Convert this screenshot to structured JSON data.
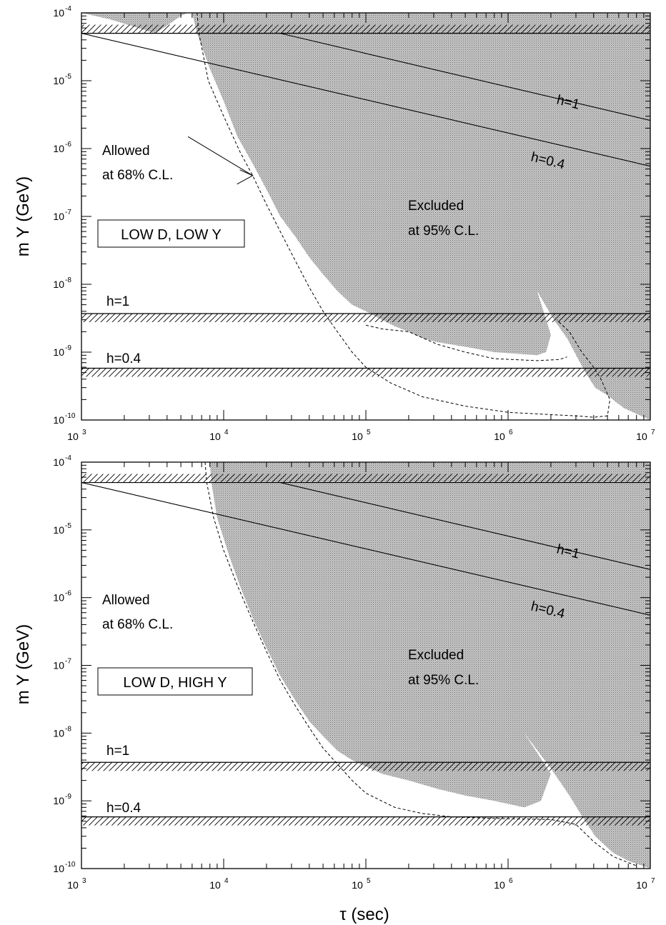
{
  "chart_data": [
    {
      "type": "area",
      "title": "",
      "xlabel": "",
      "ylabel": "m Y (GeV)",
      "xscale": "log",
      "yscale": "log",
      "xlim": [
        1000,
        10000000
      ],
      "ylim": [
        1e-10,
        0.0001
      ],
      "grid": false,
      "box_label": "LOW D, LOW Y",
      "x_ticks": [
        {
          "base": "10",
          "exp": "3"
        },
        {
          "base": "10",
          "exp": "4"
        },
        {
          "base": "10",
          "exp": "5"
        },
        {
          "base": "10",
          "exp": "6"
        },
        {
          "base": "10",
          "exp": "7"
        }
      ],
      "y_ticks": [
        {
          "base": "10",
          "exp": "-4"
        },
        {
          "base": "10",
          "exp": "-5"
        },
        {
          "base": "10",
          "exp": "-6"
        },
        {
          "base": "10",
          "exp": "-7"
        },
        {
          "base": "10",
          "exp": "-8"
        },
        {
          "base": "10",
          "exp": "-9"
        },
        {
          "base": "10",
          "exp": "-10"
        }
      ],
      "labels": {
        "allowed_1": "Allowed",
        "allowed_2": "at 68% C.L.",
        "excluded_1": "Excluded",
        "excluded_2": "at 95% C.L.",
        "h1_horizontal": "h=1",
        "h04_horizontal": "h=0.4",
        "h1_diagonal": "h=1",
        "h04_diagonal": "h=0.4"
      },
      "arrow": {
        "from": [
          5000,
          1.5e-06
        ],
        "to": [
          16000,
          4e-07
        ]
      },
      "excluded_region": [
        [
          6000,
          0.0001
        ],
        [
          6500,
          5e-05
        ],
        [
          8000,
          1.5e-05
        ],
        [
          10000,
          5e-06
        ],
        [
          12500,
          1.5e-06
        ],
        [
          16000,
          6e-07
        ],
        [
          20000,
          2.5e-07
        ],
        [
          25000,
          1e-07
        ],
        [
          32000,
          5e-08
        ],
        [
          40000,
          2.5e-08
        ],
        [
          50000,
          1.4e-08
        ],
        [
          63000,
          8e-09
        ],
        [
          80000,
          5e-09
        ],
        [
          100000,
          4e-09
        ],
        [
          130000,
          3e-09
        ],
        [
          160000,
          2.4e-09
        ],
        [
          200000,
          2e-09
        ],
        [
          250000,
          1.6e-09
        ],
        [
          320000,
          1.4e-09
        ],
        [
          500000,
          1.2e-09
        ],
        [
          800000,
          1e-09
        ],
        [
          1600000,
          9e-10
        ],
        [
          1850000,
          1e-09
        ],
        [
          2000000,
          1.8e-09
        ],
        [
          1600000,
          8e-09
        ],
        [
          2100000,
          3e-09
        ],
        [
          2600000,
          1.6e-09
        ],
        [
          3100000,
          8e-10
        ],
        [
          3500000,
          5e-10
        ],
        [
          4100000,
          3e-10
        ],
        [
          5000000,
          2.3e-10
        ],
        [
          6500000,
          1.5e-10
        ],
        [
          10000000,
          1e-10
        ],
        [
          10000000,
          0.0001
        ]
      ],
      "excluded_island": [
        [
          1000,
          0.0001
        ],
        [
          1600,
          8e-05
        ],
        [
          2500,
          6e-05
        ],
        [
          3300,
          5e-05
        ],
        [
          4000,
          6.5e-05
        ],
        [
          5000,
          9e-05
        ],
        [
          5600,
          0.0001
        ]
      ],
      "dashed_allowed_contour": [
        [
          6500,
          0.0001
        ],
        [
          6700,
          5e-05
        ],
        [
          7800,
          1e-05
        ],
        [
          10000,
          3e-06
        ],
        [
          13000,
          9e-07
        ],
        [
          16000,
          4e-07
        ],
        [
          20000,
          1.5e-07
        ],
        [
          25000,
          6e-08
        ],
        [
          32000,
          2.2e-08
        ],
        [
          40000,
          9e-09
        ],
        [
          50000,
          4e-09
        ],
        [
          63000,
          2e-09
        ],
        [
          80000,
          1e-09
        ],
        [
          100000,
          6e-10
        ],
        [
          150000,
          3.5e-10
        ],
        [
          250000,
          2.2e-10
        ],
        [
          500000,
          1.6e-10
        ],
        [
          1000000,
          1.3e-10
        ],
        [
          2000000,
          1.2e-10
        ],
        [
          3000000,
          1.15e-10
        ],
        [
          4000000,
          1.1e-10
        ],
        [
          5000000,
          1.15e-10
        ],
        [
          5200000,
          2e-10
        ],
        [
          4500000,
          4e-10
        ],
        [
          4000000,
          6e-10
        ],
        [
          3300000,
          1e-09
        ],
        [
          2700000,
          2e-09
        ],
        [
          2200000,
          3e-09
        ]
      ],
      "dashed_allowed_contour_inner": [
        [
          100000,
          2.5e-09
        ],
        [
          130000,
          2.2e-09
        ],
        [
          200000,
          2e-09
        ],
        [
          320000,
          1.3e-09
        ],
        [
          500000,
          1e-09
        ],
        [
          800000,
          8e-10
        ],
        [
          1600000,
          7.5e-10
        ],
        [
          2300000,
          7.8e-10
        ],
        [
          2600000,
          8.5e-10
        ]
      ],
      "h_lines": [
        {
          "value": 5e-05,
          "band_upper": true
        },
        {
          "value": 3.7e-09,
          "band_lower": true
        },
        {
          "value": 5.8e-10,
          "band_lower": true
        }
      ],
      "diagonal_lines": [
        {
          "x": [
            1000,
            10000000
          ],
          "y": [
            5e-05,
            5.5e-07
          ]
        },
        {
          "x": [
            25000,
            10000000
          ],
          "y": [
            5e-05,
            2.6e-06
          ]
        }
      ]
    },
    {
      "type": "area",
      "title": "",
      "xlabel": "τ (sec)",
      "ylabel": "m Y (GeV)",
      "xscale": "log",
      "yscale": "log",
      "xlim": [
        1000,
        10000000
      ],
      "ylim": [
        1e-10,
        0.0001
      ],
      "grid": false,
      "box_label": "LOW D, HIGH Y",
      "x_ticks": [
        {
          "base": "10",
          "exp": "3"
        },
        {
          "base": "10",
          "exp": "4"
        },
        {
          "base": "10",
          "exp": "5"
        },
        {
          "base": "10",
          "exp": "6"
        },
        {
          "base": "10",
          "exp": "7"
        }
      ],
      "y_ticks": [
        {
          "base": "10",
          "exp": "-4"
        },
        {
          "base": "10",
          "exp": "-5"
        },
        {
          "base": "10",
          "exp": "-6"
        },
        {
          "base": "10",
          "exp": "-7"
        },
        {
          "base": "10",
          "exp": "-8"
        },
        {
          "base": "10",
          "exp": "-9"
        },
        {
          "base": "10",
          "exp": "-10"
        }
      ],
      "labels": {
        "allowed_1": "Allowed",
        "allowed_2": "at 68% C.L.",
        "excluded_1": "Excluded",
        "excluded_2": "at 95% C.L.",
        "h1_horizontal": "h=1",
        "h04_horizontal": "h=0.4",
        "h1_diagonal": "h=1",
        "h04_diagonal": "h=0.4"
      },
      "excluded_region": [
        [
          8000,
          0.0001
        ],
        [
          8200,
          5e-05
        ],
        [
          9000,
          1.5e-05
        ],
        [
          11000,
          4e-06
        ],
        [
          13000,
          1.5e-06
        ],
        [
          16000,
          5e-07
        ],
        [
          20000,
          1.8e-07
        ],
        [
          25000,
          7e-08
        ],
        [
          32000,
          3e-08
        ],
        [
          40000,
          1.5e-08
        ],
        [
          50000,
          9e-09
        ],
        [
          63000,
          5.5e-09
        ],
        [
          80000,
          4e-09
        ],
        [
          100000,
          3.2e-09
        ],
        [
          130000,
          2.5e-09
        ],
        [
          200000,
          2e-09
        ],
        [
          320000,
          1.5e-09
        ],
        [
          500000,
          1.2e-09
        ],
        [
          800000,
          1e-09
        ],
        [
          1300000,
          8e-10
        ],
        [
          1700000,
          1e-09
        ],
        [
          2000000,
          2.5e-09
        ],
        [
          1300000,
          1e-08
        ],
        [
          2000000,
          3e-09
        ],
        [
          2700000,
          1.2e-09
        ],
        [
          3300000,
          6e-10
        ],
        [
          4100000,
          3e-10
        ],
        [
          5500000,
          1.7e-10
        ],
        [
          7000000,
          1.3e-10
        ],
        [
          10000000,
          1e-10
        ],
        [
          10000000,
          0.0001
        ]
      ],
      "dashed_allowed_contour": [
        [
          7400,
          0.0001
        ],
        [
          7600,
          5e-05
        ],
        [
          8500,
          1.5e-05
        ],
        [
          10000,
          5e-06
        ],
        [
          12500,
          1.5e-06
        ],
        [
          16000,
          4.5e-07
        ],
        [
          20000,
          1.6e-07
        ],
        [
          25000,
          6e-08
        ],
        [
          32000,
          2.5e-08
        ],
        [
          40000,
          1.2e-08
        ],
        [
          50000,
          6e-09
        ],
        [
          63000,
          3.5e-09
        ],
        [
          80000,
          2e-09
        ],
        [
          100000,
          1.3e-09
        ],
        [
          160000,
          8e-10
        ],
        [
          250000,
          6.5e-10
        ],
        [
          400000,
          5.8e-10
        ],
        [
          800000,
          5.5e-10
        ],
        [
          2000000,
          5.3e-10
        ],
        [
          3000000,
          4.5e-10
        ],
        [
          4000000,
          2.5e-10
        ],
        [
          5500000,
          1.5e-10
        ],
        [
          8000000,
          1.1e-10
        ]
      ],
      "h_lines": [
        {
          "value": 5e-05,
          "band_upper": true
        },
        {
          "value": 3.7e-09,
          "band_lower": true
        },
        {
          "value": 5.8e-10,
          "band_lower": true
        }
      ],
      "diagonal_lines": [
        {
          "x": [
            1000,
            10000000
          ],
          "y": [
            5e-05,
            5.5e-07
          ]
        },
        {
          "x": [
            25000,
            10000000
          ],
          "y": [
            5e-05,
            2.6e-06
          ]
        }
      ]
    }
  ]
}
